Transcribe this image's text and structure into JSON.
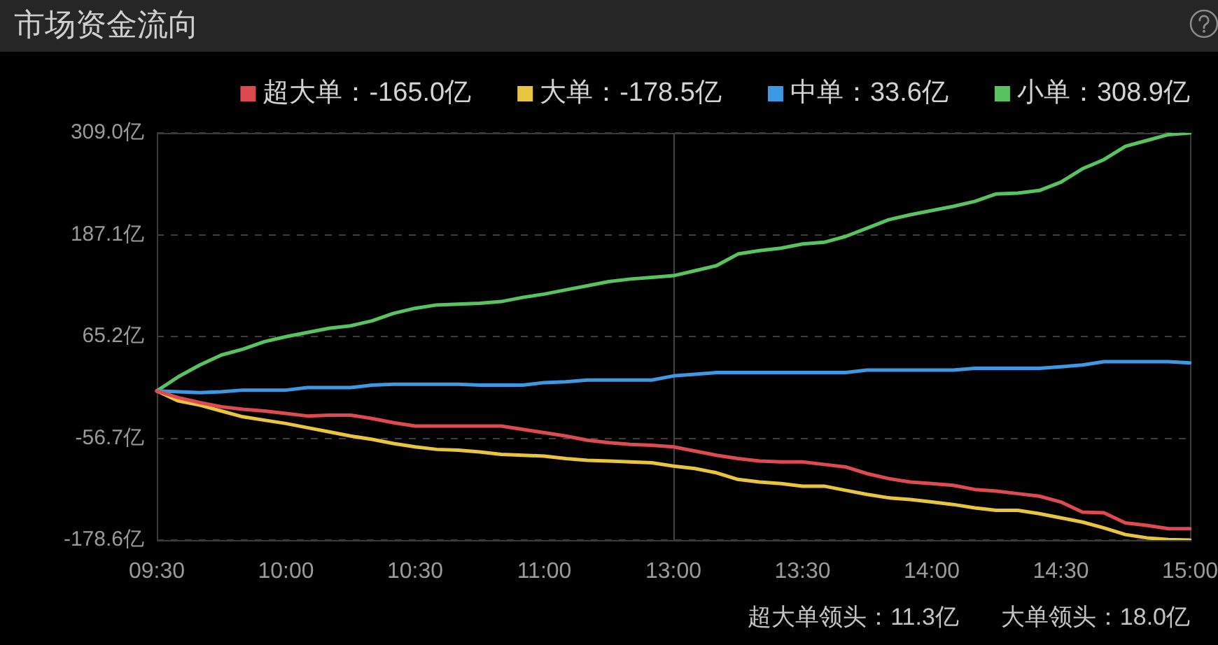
{
  "chart_data": {
    "type": "line",
    "title": "市场资金流向",
    "categories": [
      "09:30",
      null,
      null,
      null,
      null,
      null,
      "10:00",
      null,
      null,
      null,
      null,
      null,
      "10:30",
      null,
      null,
      null,
      null,
      null,
      "11:00",
      null,
      null,
      null,
      null,
      null,
      "13:00",
      null,
      null,
      null,
      null,
      null,
      "13:30",
      null,
      null,
      null,
      null,
      null,
      "14:00",
      null,
      null,
      null,
      null,
      null,
      "14:30",
      null,
      null,
      null,
      null,
      null,
      "15:00"
    ],
    "ylim": [
      -178.6,
      309.0
    ],
    "yticks": [
      {
        "value": -178.6,
        "label": "-178.6亿"
      },
      {
        "value": -56.7,
        "label": "-56.7亿"
      },
      {
        "value": 65.2,
        "label": "65.2亿"
      },
      {
        "value": 187.1,
        "label": "187.1亿"
      },
      {
        "value": 309.0,
        "label": "309.0亿"
      }
    ],
    "grid": "y",
    "legend": "top right",
    "marker": "none",
    "ref_lines": [
      {
        "axis": "x",
        "value": "13:00",
        "color": "#444444"
      }
    ],
    "series": [
      {
        "name": "超大单：-165.0亿",
        "color": "#dd4b50",
        "values": [
          0,
          -8,
          -14,
          -19,
          -22,
          -24,
          -27,
          -30,
          -29,
          -29,
          -33,
          -38,
          -42,
          -42,
          -42,
          -42,
          -42,
          -46,
          -50,
          -54,
          -59,
          -62,
          -64,
          -65,
          -67,
          -72,
          -77,
          -81,
          -84,
          -85,
          -85,
          -88,
          -91,
          -99,
          -105,
          -109,
          -111,
          -113,
          -118,
          -120,
          -123,
          -126,
          -133,
          -145,
          -146,
          -158,
          -161,
          -165,
          -165.0
        ]
      },
      {
        "name": "大单：-178.5亿",
        "color": "#e9c43f",
        "values": [
          0,
          -12,
          -17,
          -24,
          -31,
          -35,
          -39,
          -44,
          -49,
          -54,
          -58,
          -63,
          -67,
          -70,
          -71,
          -73,
          -76,
          -77,
          -78,
          -81,
          -83,
          -84,
          -85,
          -86,
          -90,
          -93,
          -98,
          -106,
          -109,
          -111,
          -114,
          -114,
          -119,
          -124,
          -128,
          -130,
          -133,
          -136,
          -140,
          -143,
          -143,
          -147,
          -152,
          -157,
          -164,
          -172,
          -176,
          -178,
          -178.5
        ]
      },
      {
        "name": "中单：33.6亿",
        "color": "#3d99e3",
        "values": [
          0,
          -1,
          -2,
          -1,
          1,
          1,
          1,
          4,
          4,
          4,
          7,
          8,
          8,
          8,
          8,
          7,
          7,
          7,
          10,
          11,
          13,
          13,
          13,
          13,
          18,
          20,
          22,
          22,
          22,
          22,
          22,
          22,
          22,
          25,
          25,
          25,
          25,
          25,
          27,
          27,
          27,
          27,
          29,
          31,
          35,
          35,
          35,
          35,
          33.6
        ]
      },
      {
        "name": "小单：308.9亿",
        "color": "#59c360",
        "values": [
          0,
          17,
          31,
          43,
          50,
          59,
          65,
          70,
          75,
          78,
          84,
          93,
          99,
          103,
          104,
          105,
          107,
          112,
          116,
          121,
          126,
          131,
          134,
          136,
          138,
          144,
          150,
          164,
          168,
          171,
          176,
          178,
          185,
          195,
          205,
          211,
          216,
          221,
          227,
          236,
          237,
          240,
          250,
          266,
          277,
          293,
          300,
          307,
          308.9
        ]
      }
    ],
    "annotations": [
      "超大单领头：11.3亿",
      "大单领头：18.0亿"
    ]
  }
}
